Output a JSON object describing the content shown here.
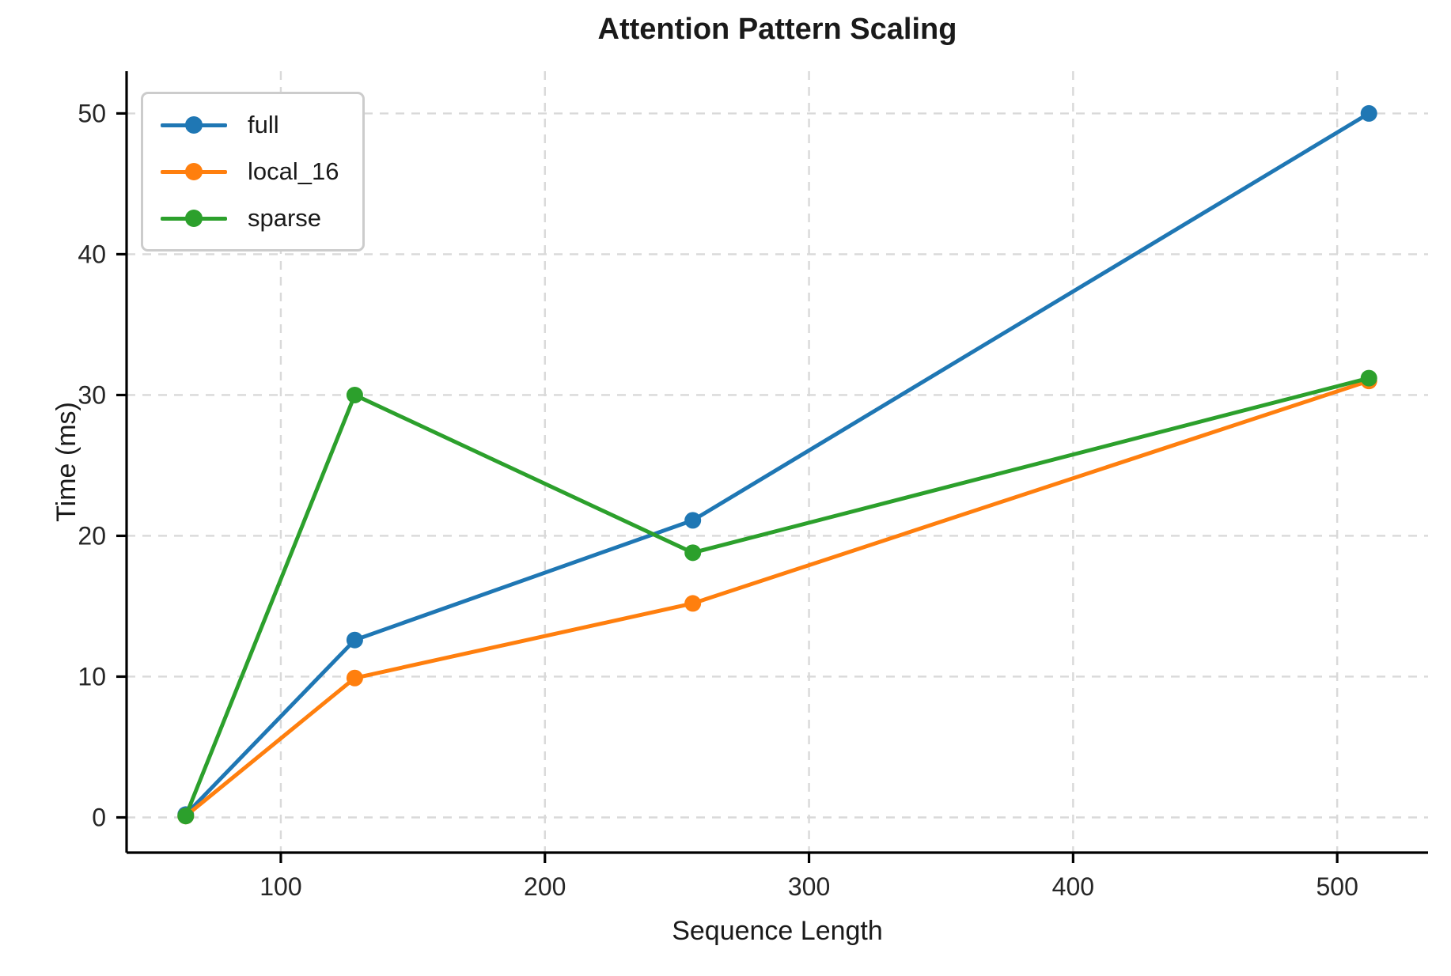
{
  "chart_data": {
    "type": "line",
    "title": "Attention Pattern Scaling",
    "xlabel": "Sequence Length",
    "ylabel": "Time (ms)",
    "x": [
      64,
      128,
      256,
      512
    ],
    "series": [
      {
        "name": "full",
        "color": "#1f77b4",
        "values": [
          0.2,
          12.6,
          21.1,
          50.0
        ]
      },
      {
        "name": "local_16",
        "color": "#ff7f0e",
        "values": [
          0.1,
          9.9,
          15.2,
          31.0
        ]
      },
      {
        "name": "sparse",
        "color": "#2ca02c",
        "values": [
          0.1,
          30.0,
          18.8,
          31.2
        ]
      }
    ],
    "xticks": [
      100,
      200,
      300,
      400,
      500
    ],
    "yticks": [
      0,
      10,
      20,
      30,
      40,
      50
    ],
    "xlim": [
      41.6,
      534.4
    ],
    "ylim": [
      -2.5,
      53
    ],
    "grid": true,
    "grid_style": "dashed",
    "grid_color": "#d9d9d9",
    "axis_color": "#000000",
    "tick_label_color": "#262626",
    "legend_position": "upper-left",
    "legend_border_color": "#cccccc",
    "legend_background": "#ffffff"
  }
}
